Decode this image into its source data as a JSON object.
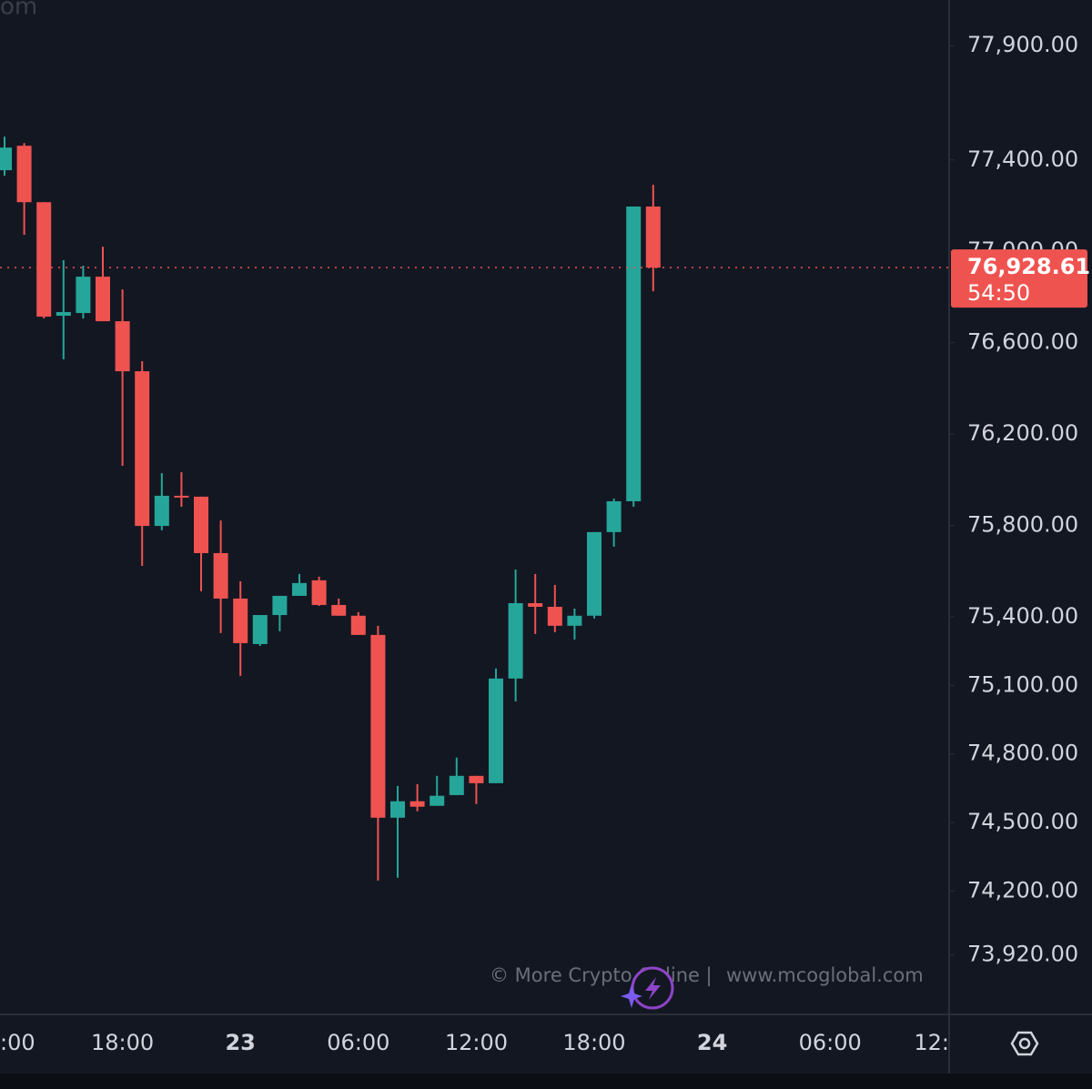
{
  "chart_data": {
    "type": "candlestick",
    "corner_text": "om",
    "watermark": [
      "© More Crypto Online",
      "|",
      "www.mcoglobal.com"
    ],
    "categories": [
      ":00",
      null,
      null,
      null,
      null,
      null,
      "18:00",
      null,
      null,
      null,
      null,
      null,
      "23",
      null,
      null,
      null,
      null,
      null,
      "06:00",
      null,
      null,
      null,
      null,
      null,
      "12:00",
      null,
      null,
      null,
      null,
      null,
      "18:00",
      null,
      null,
      null,
      null,
      null,
      "24",
      null,
      null,
      null,
      null,
      null,
      "06:00",
      null,
      null,
      null,
      null,
      null,
      "12:"
    ],
    "open": [
      77355,
      77462,
      77215,
      76718,
      76730,
      76889,
      76694,
      76475,
      75798,
      75930,
      75926,
      75679,
      75480,
      75281,
      75408,
      75492,
      75560,
      75452,
      75405,
      75321,
      74521,
      74593,
      74573,
      74620,
      74704,
      74672,
      75130,
      75460,
      75444,
      75361,
      75405,
      75771,
      75906,
      77196,
      null,
      null,
      null,
      null,
      null,
      null,
      null,
      null,
      null,
      null,
      null,
      null,
      null,
      null,
      null
    ],
    "high": [
      77502,
      77474,
      77215,
      76961,
      76937,
      77020,
      76833,
      76519,
      76029,
      76033,
      75926,
      75822,
      75556,
      75408,
      75492,
      75588,
      75576,
      75480,
      75421,
      75361,
      74660,
      74668,
      74704,
      74784,
      74704,
      75174,
      75607,
      75588,
      75540,
      75436,
      75771,
      75918,
      77196,
      77291,
      null,
      null,
      null,
      null,
      null,
      null,
      null,
      null,
      null,
      null,
      null,
      null,
      null,
      null,
      null
    ],
    "low": [
      77331,
      77072,
      76706,
      76527,
      76706,
      76694,
      76061,
      75623,
      75779,
      75882,
      75512,
      75329,
      75142,
      75273,
      75337,
      75492,
      75448,
      75405,
      75321,
      74246,
      74258,
      74549,
      74573,
      74620,
      74581,
      74672,
      75030,
      75325,
      75333,
      75301,
      75393,
      75707,
      75882,
      76825,
      null,
      null,
      null,
      null,
      null,
      null,
      null,
      null,
      null,
      null,
      null,
      null,
      null,
      null,
      null
    ],
    "close": [
      77454,
      77215,
      76714,
      76734,
      76889,
      76694,
      76475,
      75798,
      75930,
      75922,
      75679,
      75480,
      75285,
      75408,
      75492,
      75548,
      75452,
      75405,
      75321,
      74521,
      74593,
      74569,
      74617,
      74704,
      74672,
      75130,
      75460,
      75444,
      75361,
      75405,
      75771,
      75906,
      77196,
      76928.61,
      null,
      null,
      null,
      null,
      null,
      null,
      null,
      null,
      null,
      null,
      null,
      null,
      null,
      null,
      null
    ],
    "up_color": "#26a69a",
    "down_color": "#ef5350",
    "ylim": [
      73660,
      78100
    ],
    "yticks": [
      {
        "value": 77900,
        "label": "77,900.00"
      },
      {
        "value": 77400,
        "label": "77,400.00"
      },
      {
        "value": 77000,
        "label": "77,000.00"
      },
      {
        "value": 76600,
        "label": "76,600.00"
      },
      {
        "value": 76200,
        "label": "76,200.00"
      },
      {
        "value": 75800,
        "label": "75,800.00"
      },
      {
        "value": 75400,
        "label": "75,400.00"
      },
      {
        "value": 75100,
        "label": "75,100.00"
      },
      {
        "value": 74800,
        "label": "74,800.00"
      },
      {
        "value": 74500,
        "label": "74,500.00"
      },
      {
        "value": 74200,
        "label": "74,200.00"
      },
      {
        "value": 73920,
        "label": "73,920.00"
      }
    ],
    "price_marker": {
      "value": 76928.61,
      "label": "76,928.61",
      "countdown": "54:50"
    },
    "grid": false
  }
}
